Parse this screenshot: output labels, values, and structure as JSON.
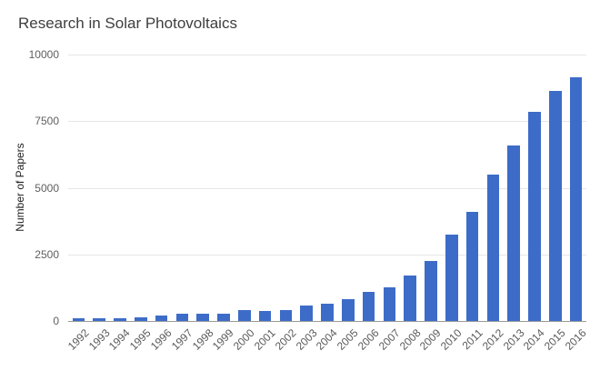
{
  "chart_data": {
    "type": "bar",
    "title": "Research in Solar Photovoltaics",
    "xlabel": "",
    "ylabel": "Number of Papers",
    "ylim": [
      0,
      10000
    ],
    "yticks": [
      0,
      2500,
      5000,
      7500,
      10000
    ],
    "grid": true,
    "legend_position": "none",
    "bar_color": "#3d6cc8",
    "categories": [
      "1992",
      "1993",
      "1994",
      "1995",
      "1996",
      "1997",
      "1998",
      "1999",
      "2000",
      "2001",
      "2002",
      "2003",
      "2004",
      "2005",
      "2006",
      "2007",
      "2008",
      "2009",
      "2010",
      "2011",
      "2012",
      "2013",
      "2014",
      "2015",
      "2016"
    ],
    "values": [
      110,
      95,
      105,
      130,
      200,
      270,
      280,
      290,
      400,
      360,
      410,
      570,
      660,
      810,
      1100,
      1250,
      1700,
      2250,
      3250,
      4100,
      5500,
      6600,
      7850,
      8650,
      9150
    ]
  }
}
